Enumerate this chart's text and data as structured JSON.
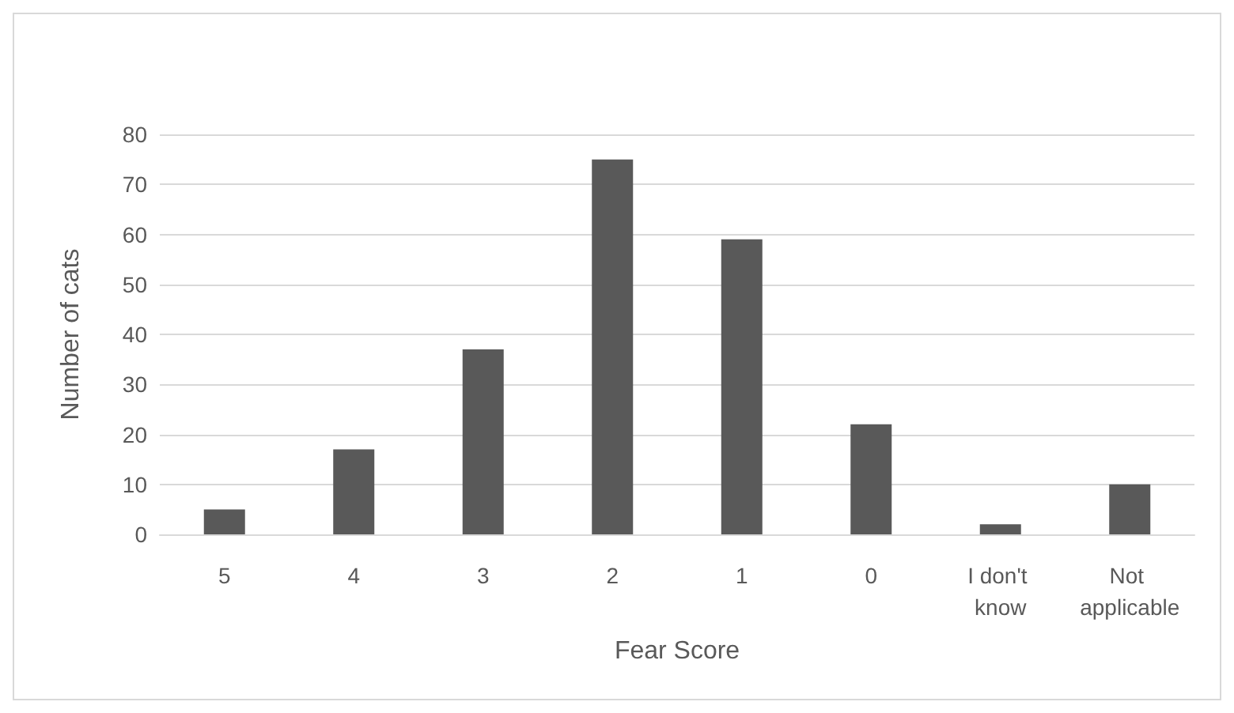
{
  "chart_data": {
    "type": "bar",
    "xlabel": "Fear Score",
    "ylabel": "Number of cats",
    "categories": [
      "5",
      "4",
      "3",
      "2",
      "1",
      "0",
      "I don't know",
      "Not applicable"
    ],
    "values": [
      5,
      17,
      37,
      75,
      59,
      22,
      2,
      10
    ],
    "color": "#595959",
    "ylim": [
      0,
      80
    ],
    "yticks": [
      0,
      10,
      20,
      30,
      40,
      50,
      60,
      70,
      80
    ],
    "grid": "y"
  }
}
